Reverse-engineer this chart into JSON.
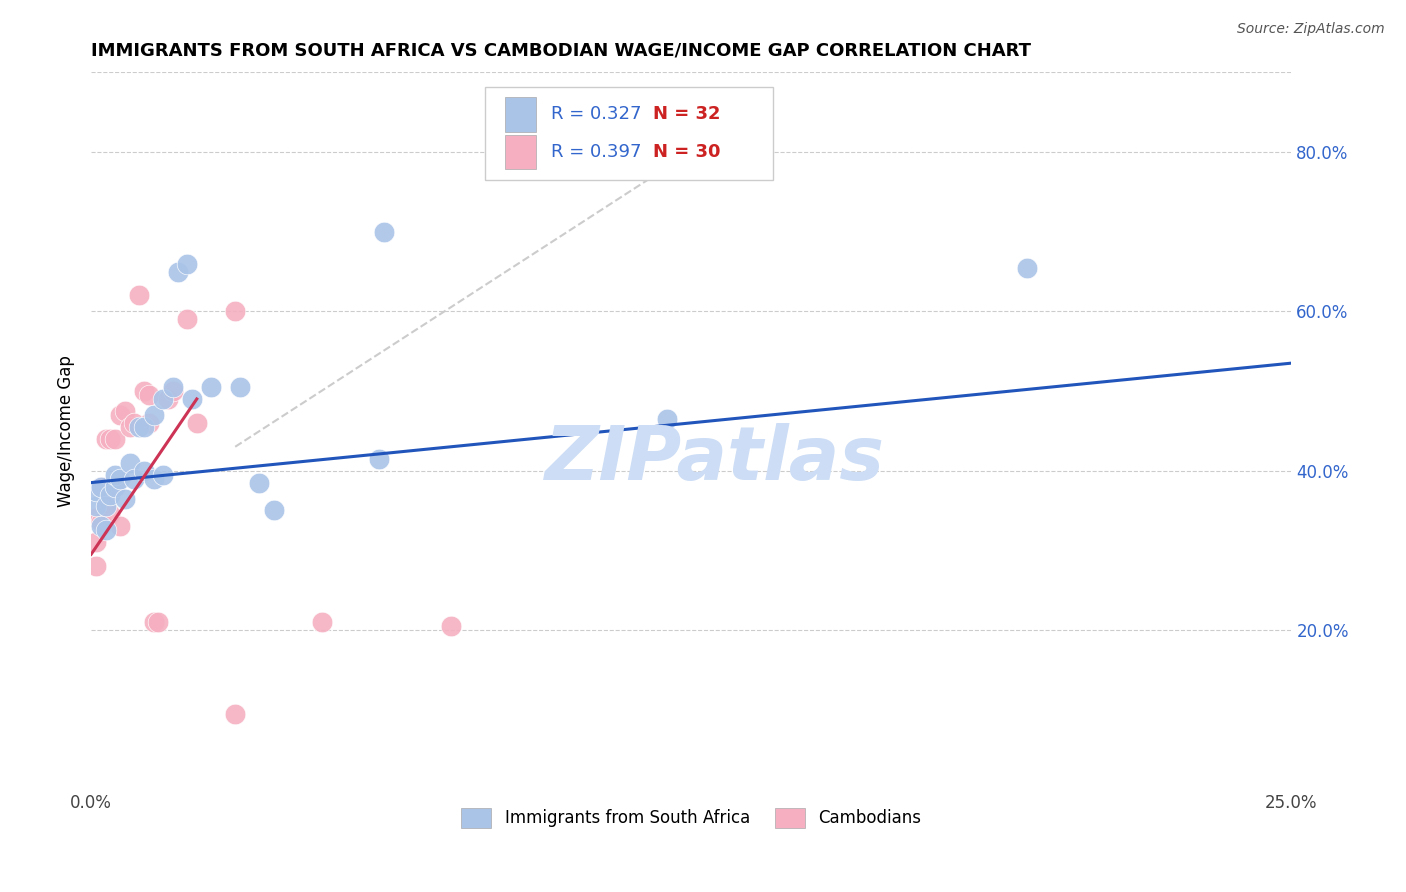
{
  "title": "IMMIGRANTS FROM SOUTH AFRICA VS CAMBODIAN WAGE/INCOME GAP CORRELATION CHART",
  "source": "Source: ZipAtlas.com",
  "ylabel": "Wage/Income Gap",
  "xlim": [
    0.0,
    0.25
  ],
  "ylim": [
    0.0,
    0.9
  ],
  "xtick_positions": [
    0.0,
    0.05,
    0.1,
    0.15,
    0.2,
    0.25
  ],
  "xticklabels": [
    "0.0%",
    "",
    "",
    "",
    "",
    "25.0%"
  ],
  "ytick_positions": [
    0.2,
    0.4,
    0.6,
    0.8
  ],
  "yticklabels": [
    "20.0%",
    "40.0%",
    "60.0%",
    "80.0%"
  ],
  "legend_labels": [
    "Immigrants from South Africa",
    "Cambodians"
  ],
  "R_blue": "0.327",
  "N_blue": "32",
  "R_pink": "0.397",
  "N_pink": "30",
  "blue_scatter_color": "#aac4e8",
  "pink_scatter_color": "#f5afc0",
  "blue_line_color": "#2255bb",
  "pink_line_color": "#cc3355",
  "dashed_color": "#cccccc",
  "text_blue": "#3366cc",
  "text_red": "#cc2222",
  "watermark": "ZIPatlas",
  "watermark_color": "#ccddf5",
  "blue_scatter_x": [
    0.001,
    0.001,
    0.002,
    0.002,
    0.003,
    0.003,
    0.004,
    0.005,
    0.005,
    0.006,
    0.007,
    0.008,
    0.009,
    0.01,
    0.011,
    0.011,
    0.013,
    0.013,
    0.015,
    0.015,
    0.017,
    0.018,
    0.02,
    0.021,
    0.025,
    0.031,
    0.035,
    0.038,
    0.06,
    0.061,
    0.12,
    0.195
  ],
  "blue_scatter_y": [
    0.355,
    0.375,
    0.33,
    0.38,
    0.325,
    0.355,
    0.37,
    0.38,
    0.395,
    0.39,
    0.365,
    0.41,
    0.39,
    0.455,
    0.4,
    0.455,
    0.47,
    0.39,
    0.395,
    0.49,
    0.505,
    0.65,
    0.66,
    0.49,
    0.505,
    0.505,
    0.385,
    0.35,
    0.415,
    0.7,
    0.465,
    0.655
  ],
  "pink_scatter_x": [
    0.001,
    0.001,
    0.001,
    0.002,
    0.002,
    0.003,
    0.003,
    0.004,
    0.004,
    0.005,
    0.005,
    0.006,
    0.006,
    0.007,
    0.008,
    0.009,
    0.01,
    0.011,
    0.012,
    0.012,
    0.013,
    0.014,
    0.016,
    0.017,
    0.02,
    0.022,
    0.03,
    0.03,
    0.048,
    0.075
  ],
  "pink_scatter_y": [
    0.28,
    0.31,
    0.34,
    0.335,
    0.38,
    0.36,
    0.44,
    0.345,
    0.44,
    0.38,
    0.44,
    0.33,
    0.47,
    0.475,
    0.455,
    0.46,
    0.62,
    0.5,
    0.46,
    0.495,
    0.21,
    0.21,
    0.49,
    0.5,
    0.59,
    0.46,
    0.095,
    0.6,
    0.21,
    0.205
  ],
  "blue_trend_x": [
    0.0,
    0.25
  ],
  "blue_trend_y": [
    0.385,
    0.535
  ],
  "pink_trend_x": [
    0.0,
    0.022
  ],
  "pink_trend_y": [
    0.295,
    0.49
  ],
  "dashed_trend_x": [
    0.03,
    0.13
  ],
  "dashed_trend_y": [
    0.43,
    0.82
  ]
}
